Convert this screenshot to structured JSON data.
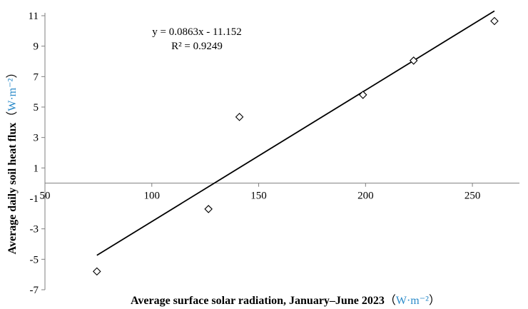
{
  "chart_data": {
    "type": "scatter",
    "title": "",
    "xlabel": "Average surface solar radiation, January–June 2023",
    "xlabel_unit": "W·m⁻²",
    "ylabel": "Average daily soil heat flux",
    "ylabel_unit": "W·m⁻²",
    "xlim": [
      50,
      270
    ],
    "ylim": [
      -7,
      12
    ],
    "x_ticks": [
      50,
      100,
      150,
      200,
      250
    ],
    "x_tick_labels": [
      "50",
      "100",
      "150",
      "200",
      "250"
    ],
    "y_ticks": [
      11,
      9,
      7,
      5,
      3,
      1,
      -1,
      -3,
      -5,
      -7
    ],
    "y_tick_labels": [
      "11",
      "9",
      "7",
      "5",
      "3",
      "1",
      "-1",
      "-3",
      "-5",
      "-7"
    ],
    "x": [
      74.3,
      126.5,
      141.0,
      198.8,
      222.5,
      260.3
    ],
    "y": [
      -5.8,
      -1.7,
      4.35,
      5.8,
      8.05,
      10.65
    ],
    "marker": "diamond",
    "trendline": {
      "slope": 0.0863,
      "intercept": -11.152,
      "x_range": [
        74.3,
        260.3
      ],
      "equation": "y = 0.0863x - 11.152",
      "r_squared": "R² = 0.9249"
    },
    "grid": false,
    "legend": "none"
  }
}
